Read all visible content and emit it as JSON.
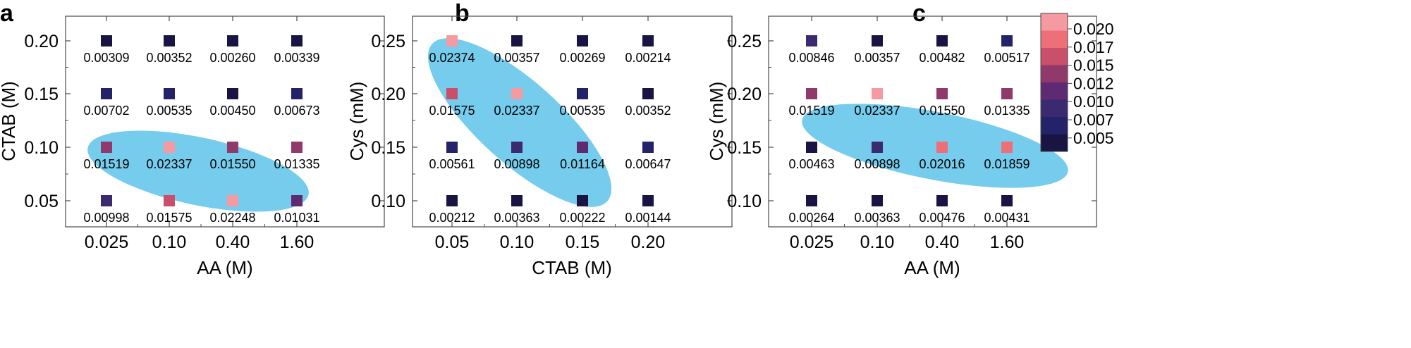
{
  "palette": [
    "#1a1444",
    "#24236a",
    "#3b2a70",
    "#5e2b72",
    "#8f3a6a",
    "#c94f6b",
    "#ef6f78",
    "#f49aa0"
  ],
  "highlight_color": "#6ec9ec",
  "chart_data": [
    {
      "panel": "a",
      "type": "scatter",
      "xlabel": "AA (M)",
      "ylabel": "CTAB (M)",
      "x_categories": [
        "0.025",
        "0.10",
        "0.40",
        "1.60"
      ],
      "y_categories": [
        "0.20",
        "0.15",
        "0.10",
        "0.05"
      ],
      "values": [
        [
          0.00309,
          0.00352,
          0.0026,
          0.00339
        ],
        [
          0.00702,
          0.00535,
          0.0045,
          0.00673
        ],
        [
          0.01519,
          0.02337,
          0.0155,
          0.01335
        ],
        [
          0.00998,
          0.01575,
          0.02248,
          0.01031
        ]
      ],
      "labels": [
        [
          "0.00309",
          "0.00352",
          "0.00260",
          "0.00339"
        ],
        [
          "0.00702",
          "0.00535",
          "0.00450",
          "0.00673"
        ],
        [
          "0.01519",
          "0.02337",
          "0.01550",
          "0.01335"
        ],
        [
          "0.00998",
          "0.01575",
          "0.02248",
          "0.01031"
        ]
      ],
      "highlight": "shaded ellipse over row 0.10 and lower-right cells"
    },
    {
      "panel": "b",
      "type": "scatter",
      "xlabel": "CTAB (M)",
      "ylabel": "Cys (mM)",
      "x_categories": [
        "0.05",
        "0.10",
        "0.15",
        "0.20"
      ],
      "y_categories": [
        "0.25",
        "0.20",
        "0.15",
        "0.10"
      ],
      "values": [
        [
          0.02374,
          0.00357,
          0.00269,
          0.00214
        ],
        [
          0.01575,
          0.02337,
          0.00535,
          0.00352
        ],
        [
          0.00561,
          0.00898,
          0.01164,
          0.00647
        ],
        [
          0.00212,
          0.00363,
          0.00222,
          0.00144
        ]
      ],
      "labels": [
        [
          "0.02374",
          "0.00357",
          "0.00269",
          "0.00214"
        ],
        [
          "0.01575",
          "0.02337",
          "0.00535",
          "0.00352"
        ],
        [
          "0.00561",
          "0.00898",
          "0.01164",
          "0.00647"
        ],
        [
          "0.00212",
          "0.00363",
          "0.00222",
          "0.00144"
        ]
      ],
      "highlight": "shaded ellipse along the diagonal"
    },
    {
      "panel": "c",
      "type": "scatter",
      "xlabel": "AA (M)",
      "ylabel": "Cys (mM)",
      "x_categories": [
        "0.025",
        "0.10",
        "0.40",
        "1.60"
      ],
      "y_categories": [
        "0.25",
        "0.20",
        "0.15",
        "0.10"
      ],
      "values": [
        [
          0.00846,
          0.00357,
          0.00482,
          0.00517
        ],
        [
          0.01519,
          0.02337,
          0.0155,
          0.01335
        ],
        [
          0.00463,
          0.00898,
          0.02016,
          0.01859
        ],
        [
          0.00264,
          0.00363,
          0.00476,
          0.00431
        ]
      ],
      "labels": [
        [
          "0.00846",
          "0.00357",
          "0.00482",
          "0.00517"
        ],
        [
          "0.01519",
          "0.02337",
          "0.01550",
          "0.01335"
        ],
        [
          "0.00463",
          "0.00898",
          "0.02016",
          "0.01859"
        ],
        [
          "0.00264",
          "0.00363",
          "0.00476",
          "0.00431"
        ]
      ],
      "highlight": "shaded ellipse over row 0.20 and right cells of row 0.15"
    }
  ],
  "colorbar": {
    "ticks": [
      "0.020",
      "0.017",
      "0.015",
      "0.012",
      "0.010",
      "0.007",
      "0.005"
    ],
    "tick_values": [
      0.02,
      0.017,
      0.015,
      0.012,
      0.01,
      0.007,
      0.005
    ]
  }
}
